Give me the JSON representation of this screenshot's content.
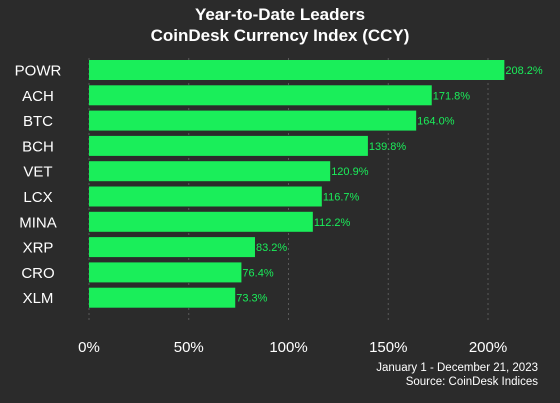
{
  "chart_data": {
    "type": "bar",
    "orientation": "horizontal",
    "title": "Year-to-Date Leaders",
    "subtitle": "CoinDesk Currency Index (CCY)",
    "categories": [
      "POWR",
      "ACH",
      "BTC",
      "BCH",
      "VET",
      "LCX",
      "MINA",
      "XRP",
      "CRO",
      "XLM"
    ],
    "values": [
      208.2,
      171.8,
      164.0,
      139.8,
      120.9,
      116.7,
      112.2,
      83.2,
      76.4,
      73.3
    ],
    "value_labels": [
      "208.2%",
      "171.8%",
      "164.0%",
      "139.8%",
      "120.9%",
      "116.7%",
      "112.2%",
      "83.2%",
      "76.4%",
      "73.3%"
    ],
    "xlim": [
      0,
      210
    ],
    "x_ticks": [
      0,
      50,
      100,
      150,
      200
    ],
    "x_tick_labels": [
      "0%",
      "50%",
      "100%",
      "150%",
      "200%"
    ],
    "xlabel": "",
    "ylabel": "",
    "grid": true,
    "legend": "none",
    "note": "January 1 - December 21, 2023",
    "source": "Source: CoinDesk Indices",
    "colors": {
      "background": "#2b2b2b",
      "bar": "#1aee5a",
      "value_label": "#1aee5a",
      "text": "#ffffff",
      "grid": "#5a5a5a"
    }
  }
}
